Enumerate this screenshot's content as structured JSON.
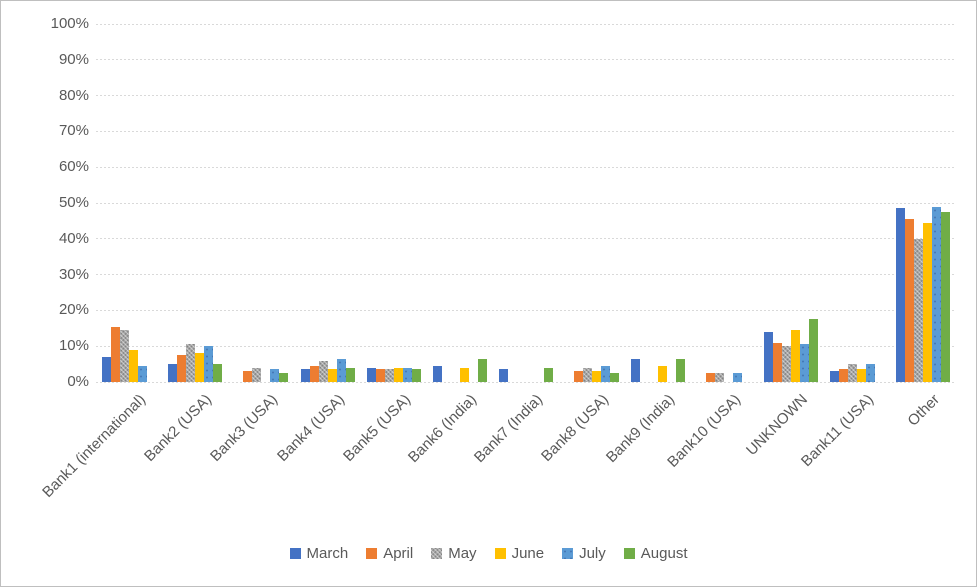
{
  "chart_data": {
    "type": "bar",
    "title": "",
    "xlabel": "",
    "ylabel": "",
    "ylim": [
      0,
      100
    ],
    "grid": true,
    "legend_position": "bottom",
    "y_ticks": [
      "0%",
      "10%",
      "20%",
      "30%",
      "40%",
      "50%",
      "60%",
      "70%",
      "80%",
      "90%",
      "100%"
    ],
    "categories": [
      "Bank1 (international)",
      "Bank2 (USA)",
      "Bank3 (USA)",
      "Bank4 (USA)",
      "Bank5 (USA)",
      "Bank6 (India)",
      "Bank7 (India)",
      "Bank8 (USA)",
      "Bank9 (India)",
      "Bank10 (USA)",
      "UNKNOWN",
      "Bank11 (USA)",
      "Other"
    ],
    "series": [
      {
        "name": "March",
        "color": "#4472C4",
        "values": [
          7,
          5,
          0,
          3.5,
          4,
          4.5,
          3.5,
          0,
          6.5,
          0,
          14,
          3,
          48.5
        ]
      },
      {
        "name": "April",
        "color": "#ED7D31",
        "values": [
          15.5,
          7.5,
          3,
          4.5,
          3.5,
          0,
          0,
          3,
          0,
          2.5,
          11,
          3.5,
          45.5
        ]
      },
      {
        "name": "May",
        "color": "#A5A5A5",
        "values": [
          14.5,
          10.5,
          4,
          6,
          3.5,
          0,
          0,
          4,
          0,
          2.5,
          10,
          5,
          40
        ]
      },
      {
        "name": "June",
        "color": "#FFC000",
        "values": [
          9,
          8,
          0,
          3.5,
          4,
          4,
          0,
          3,
          4.5,
          0,
          14.5,
          3.5,
          44.5
        ]
      },
      {
        "name": "July",
        "color": "#5B9BD5",
        "values": [
          4.5,
          10,
          3.5,
          6.5,
          4,
          0,
          0,
          4.5,
          0,
          2.5,
          10.5,
          5,
          49
        ]
      },
      {
        "name": "August",
        "color": "#70AD47",
        "values": [
          0,
          5,
          2.5,
          4,
          3.5,
          6.5,
          4,
          2.5,
          6.5,
          0,
          17.5,
          0,
          47.5
        ]
      }
    ]
  },
  "colors": {
    "text": "#595959",
    "gridline": "#D9D9D9",
    "frame_border": "#BFBFBF",
    "background": "#FFFFFF"
  }
}
